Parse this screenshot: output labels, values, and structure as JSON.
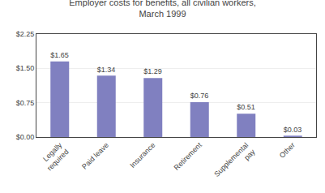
{
  "chart_data": {
    "type": "bar",
    "title": "Employer costs for benefits, all civilian workers,\nMarch 1999",
    "categories": [
      "Legally\nrequired",
      "Paid leave",
      "Insurance",
      "Retirement",
      "Supplemental\npay",
      "Other"
    ],
    "values": [
      1.65,
      1.34,
      1.29,
      0.76,
      0.51,
      0.03
    ],
    "value_labels": [
      "$1.65",
      "$1.34",
      "$1.29",
      "$0.76",
      "$0.51",
      "$0.03"
    ],
    "data_labels": true,
    "color": "#8080c0",
    "ylim": [
      0,
      2.25
    ],
    "yticks": [
      {
        "value": 0.0,
        "label": "$0.00"
      },
      {
        "value": 0.75,
        "label": "$0.75"
      },
      {
        "value": 1.5,
        "label": "$1.50"
      },
      {
        "value": 2.25,
        "label": "$2.25"
      }
    ],
    "grid": true
  }
}
